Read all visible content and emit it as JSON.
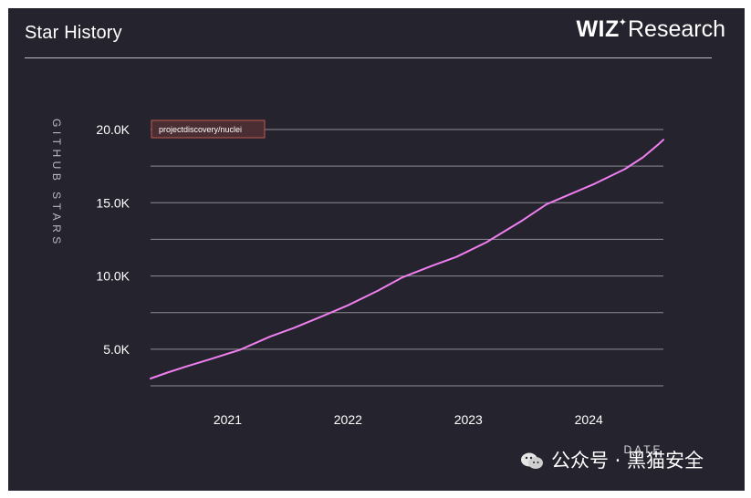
{
  "header": {
    "title": "Star History",
    "brand_bold": "WIZ",
    "brand_spark": "✦",
    "brand_light": "Research"
  },
  "colors": {
    "background": "#25232d",
    "line": "#f07ff0",
    "grid": "#8e8d92",
    "legend_border": "#c25a4e",
    "legend_fill": "#4b2e33"
  },
  "watermark": "公众号 · 黑猫安全",
  "chart_data": {
    "type": "line",
    "title": "Star History",
    "ylabel": "GITHUB STARS",
    "xlabel": "DATE",
    "y_tick_labels": [
      "5.0K",
      "10.0K",
      "15.0K",
      "20.0K"
    ],
    "y_ticks": [
      5000,
      10000,
      15000,
      20000
    ],
    "y_gridlines": [
      2500,
      5000,
      7500,
      10000,
      12500,
      15000,
      17500,
      20000
    ],
    "ylim": [
      2500,
      20000
    ],
    "x_tick_labels": [
      "2021",
      "2022",
      "2023",
      "2024"
    ],
    "x_ticks": [
      2021.0,
      2022.0,
      2023.0,
      2024.0
    ],
    "xlim": [
      2020.36,
      2024.62
    ],
    "grid": true,
    "legend_position": "top-left",
    "series": [
      {
        "name": "projectdiscovery/nuclei",
        "x": [
          2020.36,
          2020.5,
          2020.65,
          2020.85,
          2021.1,
          2021.35,
          2021.55,
          2021.8,
          2022.0,
          2022.25,
          2022.45,
          2022.7,
          2022.9,
          2023.15,
          2023.45,
          2023.65,
          2023.85,
          2024.05,
          2024.3,
          2024.45,
          2024.58,
          2024.62
        ],
        "y": [
          3000,
          3400,
          3800,
          4300,
          4950,
          5850,
          6450,
          7300,
          8000,
          9000,
          9900,
          10700,
          11300,
          12300,
          13800,
          14900,
          15600,
          16300,
          17300,
          18100,
          19000,
          19300
        ]
      }
    ]
  }
}
